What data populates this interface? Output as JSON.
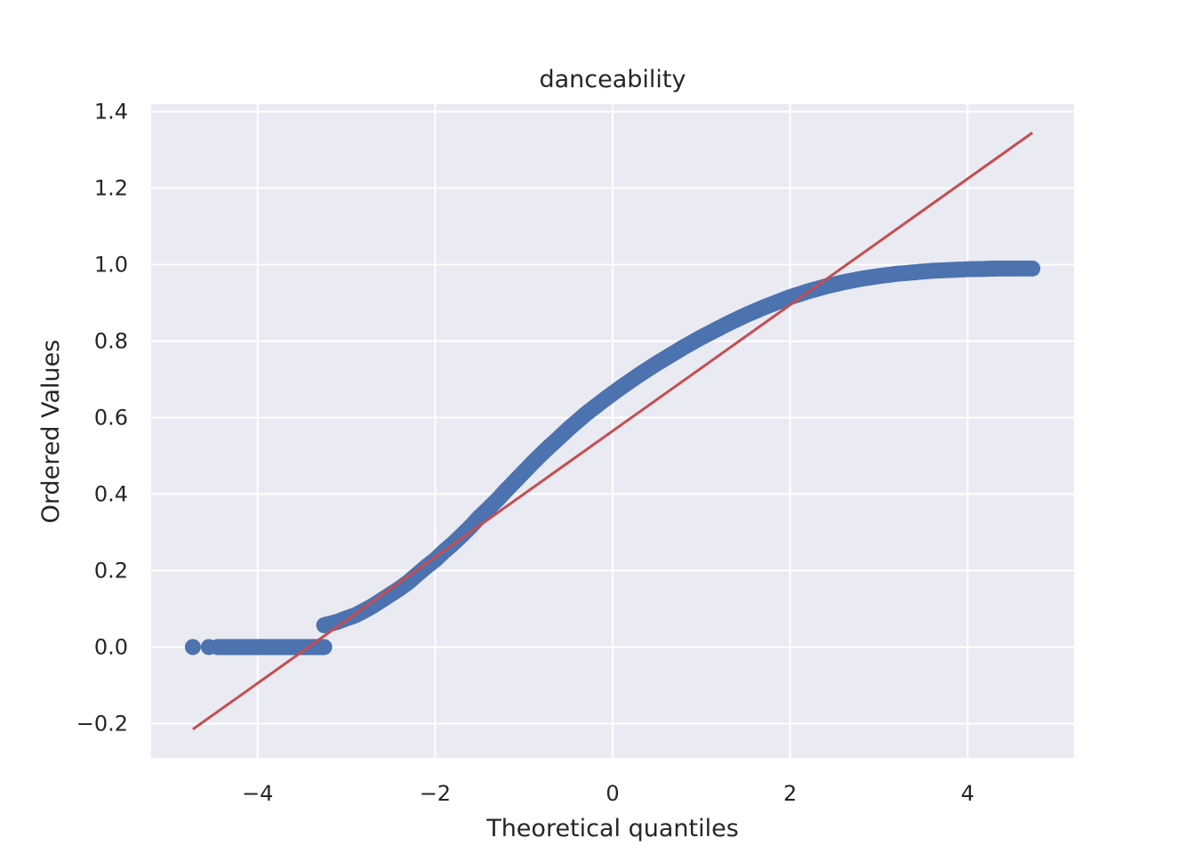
{
  "chart_data": {
    "type": "scatter",
    "title": "danceability",
    "xlabel": "Theoretical quantiles",
    "ylabel": "Ordered Values",
    "xlim": [
      -5.2,
      5.2
    ],
    "ylim": [
      -0.29,
      1.42
    ],
    "x_ticks": [
      -4,
      -2,
      0,
      2,
      4
    ],
    "x_tick_labels": [
      "−4",
      "−2",
      "0",
      "2",
      "4"
    ],
    "y_ticks": [
      -0.2,
      0.0,
      0.2,
      0.4,
      0.6,
      0.8,
      1.0,
      1.2,
      1.4
    ],
    "y_tick_labels": [
      "−0.2",
      "0.0",
      "0.2",
      "0.4",
      "0.6",
      "0.8",
      "1.0",
      "1.2",
      "1.4"
    ],
    "grid": true,
    "legend": "none",
    "series": [
      {
        "kind": "points",
        "color": "#4c72b0",
        "points": [
          [
            -4.73,
            0.0
          ],
          [
            -4.55,
            0.0
          ],
          [
            -4.45,
            0.0
          ],
          [
            -4.35,
            0.0
          ],
          [
            -4.25,
            0.0
          ],
          [
            -4.15,
            0.0
          ],
          [
            -4.05,
            0.0
          ],
          [
            -3.95,
            0.0
          ],
          [
            -3.85,
            0.0
          ],
          [
            -3.75,
            0.0
          ],
          [
            -3.65,
            0.0
          ],
          [
            -3.55,
            0.0
          ],
          [
            -3.45,
            0.0
          ],
          [
            -3.35,
            0.0
          ],
          [
            -3.25,
            0.0
          ],
          [
            -3.25,
            0.057
          ],
          [
            -3.2,
            0.06
          ],
          [
            -3.1,
            0.066
          ],
          [
            -3.0,
            0.075
          ],
          [
            -2.9,
            0.083
          ],
          [
            -2.8,
            0.095
          ],
          [
            -2.7,
            0.108
          ],
          [
            -2.6,
            0.123
          ],
          [
            -2.5,
            0.138
          ],
          [
            -2.4,
            0.153
          ],
          [
            -2.3,
            0.17
          ],
          [
            -2.2,
            0.19
          ],
          [
            -2.1,
            0.21
          ],
          [
            -2.0,
            0.228
          ],
          [
            -1.9,
            0.25
          ],
          [
            -1.8,
            0.27
          ],
          [
            -1.7,
            0.292
          ],
          [
            -1.6,
            0.315
          ],
          [
            -1.5,
            0.34
          ],
          [
            -1.4,
            0.362
          ],
          [
            -1.3,
            0.385
          ],
          [
            -1.2,
            0.41
          ],
          [
            -1.1,
            0.434
          ],
          [
            -1.0,
            0.458
          ],
          [
            -0.9,
            0.482
          ],
          [
            -0.8,
            0.505
          ],
          [
            -0.7,
            0.527
          ],
          [
            -0.6,
            0.548
          ],
          [
            -0.5,
            0.57
          ],
          [
            -0.4,
            0.59
          ],
          [
            -0.3,
            0.61
          ],
          [
            -0.2,
            0.628
          ],
          [
            -0.1,
            0.646
          ],
          [
            0.0,
            0.663
          ],
          [
            0.1,
            0.68
          ],
          [
            0.2,
            0.696
          ],
          [
            0.3,
            0.712
          ],
          [
            0.4,
            0.727
          ],
          [
            0.5,
            0.742
          ],
          [
            0.6,
            0.756
          ],
          [
            0.7,
            0.77
          ],
          [
            0.8,
            0.784
          ],
          [
            0.9,
            0.797
          ],
          [
            1.0,
            0.81
          ],
          [
            1.1,
            0.822
          ],
          [
            1.2,
            0.834
          ],
          [
            1.3,
            0.846
          ],
          [
            1.4,
            0.857
          ],
          [
            1.5,
            0.868
          ],
          [
            1.6,
            0.878
          ],
          [
            1.7,
            0.888
          ],
          [
            1.8,
            0.897
          ],
          [
            1.9,
            0.906
          ],
          [
            2.0,
            0.915
          ],
          [
            2.2,
            0.93
          ],
          [
            2.4,
            0.943
          ],
          [
            2.6,
            0.954
          ],
          [
            2.8,
            0.963
          ],
          [
            3.0,
            0.97
          ],
          [
            3.2,
            0.976
          ],
          [
            3.4,
            0.98
          ],
          [
            3.6,
            0.984
          ],
          [
            3.8,
            0.986
          ],
          [
            4.0,
            0.988
          ],
          [
            4.2,
            0.989
          ],
          [
            4.35,
            0.99
          ],
          [
            4.5,
            0.99
          ],
          [
            4.73,
            0.99
          ]
        ]
      },
      {
        "kind": "line",
        "color": "#c44e52",
        "points": [
          [
            -4.73,
            -0.215
          ],
          [
            4.73,
            1.345
          ]
        ]
      }
    ]
  }
}
